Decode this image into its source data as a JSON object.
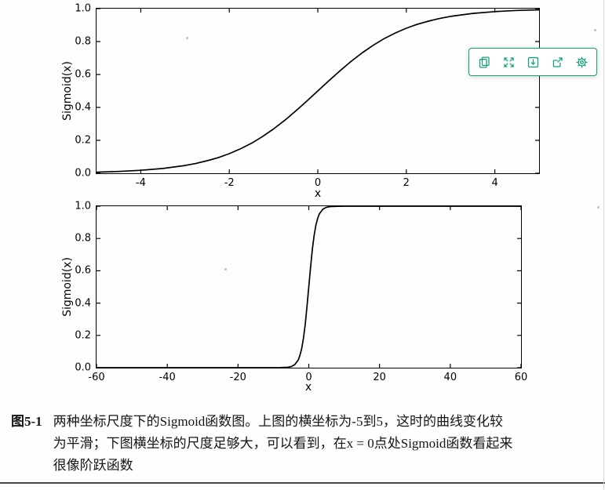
{
  "page": {
    "background": "#ffffff",
    "bottom_rule_color": "#474747"
  },
  "toolbar": {
    "accent": "#12a17b",
    "icons": [
      "snapshot-icon",
      "expand-icon",
      "save-icon",
      "share-icon",
      "settings-icon"
    ]
  },
  "chart_data": [
    {
      "type": "line",
      "title": "",
      "xlabel": "x",
      "ylabel": "Sigmoid(x)",
      "xlim": [
        -5,
        5
      ],
      "ylim": [
        0,
        1
      ],
      "grid": false,
      "axis_color": "#000000",
      "xticks": [
        {
          "v": -4,
          "label": "-4"
        },
        {
          "v": -2,
          "label": "-2"
        },
        {
          "v": 0,
          "label": "0"
        },
        {
          "v": 2,
          "label": "2"
        },
        {
          "v": 4,
          "label": "4"
        }
      ],
      "yticks": [
        {
          "v": 0.0,
          "label": "0.0"
        },
        {
          "v": 0.2,
          "label": "0.2"
        },
        {
          "v": 0.4,
          "label": "0.4"
        },
        {
          "v": 0.6,
          "label": "0.6"
        },
        {
          "v": 0.8,
          "label": "0.8"
        },
        {
          "v": 1.0,
          "label": "1.0"
        }
      ],
      "series": [
        {
          "name": "sigmoid",
          "color": "#000000",
          "width": 1.7,
          "points": [
            [
              -5,
              0.0067
            ],
            [
              -4.5,
              0.011
            ],
            [
              -4,
              0.018
            ],
            [
              -3.5,
              0.029
            ],
            [
              -3,
              0.047
            ],
            [
              -2.75,
              0.06
            ],
            [
              -2.5,
              0.076
            ],
            [
              -2.25,
              0.095
            ],
            [
              -2,
              0.119
            ],
            [
              -1.75,
              0.148
            ],
            [
              -1.5,
              0.182
            ],
            [
              -1.25,
              0.223
            ],
            [
              -1,
              0.269
            ],
            [
              -0.75,
              0.321
            ],
            [
              -0.5,
              0.378
            ],
            [
              -0.25,
              0.438
            ],
            [
              0,
              0.5
            ],
            [
              0.25,
              0.562
            ],
            [
              0.5,
              0.622
            ],
            [
              0.75,
              0.679
            ],
            [
              1,
              0.731
            ],
            [
              1.25,
              0.777
            ],
            [
              1.5,
              0.818
            ],
            [
              1.75,
              0.852
            ],
            [
              2,
              0.881
            ],
            [
              2.25,
              0.905
            ],
            [
              2.5,
              0.924
            ],
            [
              2.75,
              0.94
            ],
            [
              3,
              0.953
            ],
            [
              3.5,
              0.971
            ],
            [
              4,
              0.982
            ],
            [
              4.5,
              0.989
            ],
            [
              5,
              0.993
            ]
          ]
        }
      ]
    },
    {
      "type": "line",
      "title": "",
      "xlabel": "x",
      "ylabel": "Sigmoid(x)",
      "xlim": [
        -60,
        60
      ],
      "ylim": [
        0,
        1
      ],
      "grid": false,
      "axis_color": "#000000",
      "xticks": [
        {
          "v": -60,
          "label": "-60"
        },
        {
          "v": -40,
          "label": "-40"
        },
        {
          "v": -20,
          "label": "-20"
        },
        {
          "v": 0,
          "label": "0"
        },
        {
          "v": 20,
          "label": "20"
        },
        {
          "v": 40,
          "label": "40"
        },
        {
          "v": 60,
          "label": "60"
        }
      ],
      "yticks": [
        {
          "v": 0.0,
          "label": "0.0"
        },
        {
          "v": 0.2,
          "label": "0.2"
        },
        {
          "v": 0.4,
          "label": "0.4"
        },
        {
          "v": 0.6,
          "label": "0.6"
        },
        {
          "v": 0.8,
          "label": "0.8"
        },
        {
          "v": 1.0,
          "label": "1.0"
        }
      ],
      "series": [
        {
          "name": "sigmoid",
          "color": "#000000",
          "width": 1.7,
          "points": [
            [
              -60,
              0
            ],
            [
              -40,
              0
            ],
            [
              -20,
              0
            ],
            [
              -10,
              5e-05
            ],
            [
              -8,
              0.0003
            ],
            [
              -6,
              0.0025
            ],
            [
              -5,
              0.0067
            ],
            [
              -4,
              0.018
            ],
            [
              -3,
              0.047
            ],
            [
              -2.5,
              0.076
            ],
            [
              -2,
              0.119
            ],
            [
              -1.5,
              0.182
            ],
            [
              -1,
              0.269
            ],
            [
              -0.5,
              0.378
            ],
            [
              0,
              0.5
            ],
            [
              0.5,
              0.622
            ],
            [
              1,
              0.731
            ],
            [
              1.5,
              0.818
            ],
            [
              2,
              0.881
            ],
            [
              2.5,
              0.924
            ],
            [
              3,
              0.953
            ],
            [
              4,
              0.982
            ],
            [
              5,
              0.993
            ],
            [
              6,
              0.9975
            ],
            [
              8,
              0.9997
            ],
            [
              10,
              0.99995
            ],
            [
              20,
              1
            ],
            [
              40,
              1
            ],
            [
              60,
              1
            ]
          ]
        }
      ]
    }
  ],
  "caption": {
    "label": "图5-1",
    "lines": [
      "两种坐标尺度下的Sigmoid函数图。上图的横坐标为-5到5，这时的曲线变化较",
      "为平滑；下图横坐标的尺度足够大，可以看到，在x = 0点处Sigmoid函数看起来",
      "很像阶跃函数"
    ]
  }
}
